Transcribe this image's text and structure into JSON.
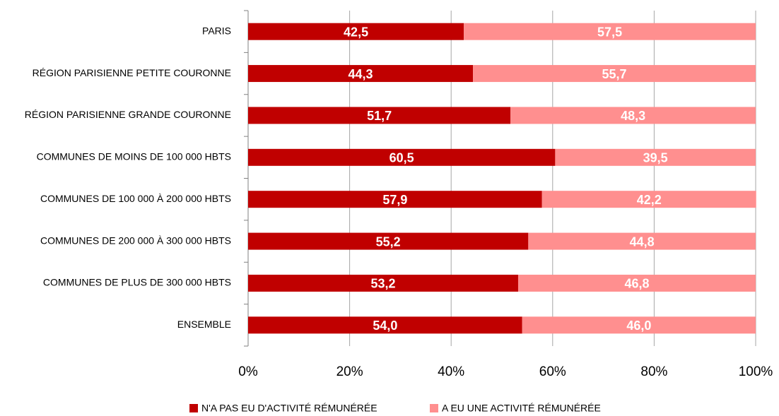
{
  "chart_data": {
    "type": "stacked_barh",
    "categories": [
      "PARIS",
      "RÉGION PARISIENNE PETITE COURONNE",
      "RÉGION PARISIENNE GRANDE COURONNE",
      "COMMUNES DE MOINS DE 100 000 HBTS",
      "COMMUNES DE 100 000 À 200 000 HBTS",
      "COMMUNES DE 200 000 À 300 000 HBTS",
      "COMMUNES DE PLUS DE 300 000 HBTS",
      "ENSEMBLE"
    ],
    "series": [
      {
        "name": "N'A PAS EU D'ACTIVITÉ RÉMUNÉRÉE",
        "color": "#c00000",
        "values": [
          42.5,
          44.3,
          51.7,
          60.5,
          57.9,
          55.2,
          53.2,
          54.0
        ],
        "value_labels": [
          "42,5",
          "44,3",
          "51,7",
          "60,5",
          "57,9",
          "55,2",
          "53,2",
          "54,0"
        ]
      },
      {
        "name": "A EU UNE ACTIVITÉ RÉMUNÉRÉE",
        "color": "#ff8f8f",
        "values": [
          57.5,
          55.7,
          48.3,
          39.5,
          42.2,
          44.8,
          46.8,
          46.0
        ],
        "value_labels": [
          "57,5",
          "55,7",
          "48,3",
          "39,5",
          "42,2",
          "44,8",
          "46,8",
          "46,0"
        ]
      }
    ],
    "xlim": [
      0,
      100
    ],
    "xticks": [
      {
        "value": 0,
        "label": "0%"
      },
      {
        "value": 20,
        "label": "20%"
      },
      {
        "value": 40,
        "label": "40%"
      },
      {
        "value": 60,
        "label": "60%"
      },
      {
        "value": 80,
        "label": "80%"
      },
      {
        "value": 100,
        "label": "100%"
      }
    ],
    "grid": true,
    "legend": "bottom"
  }
}
